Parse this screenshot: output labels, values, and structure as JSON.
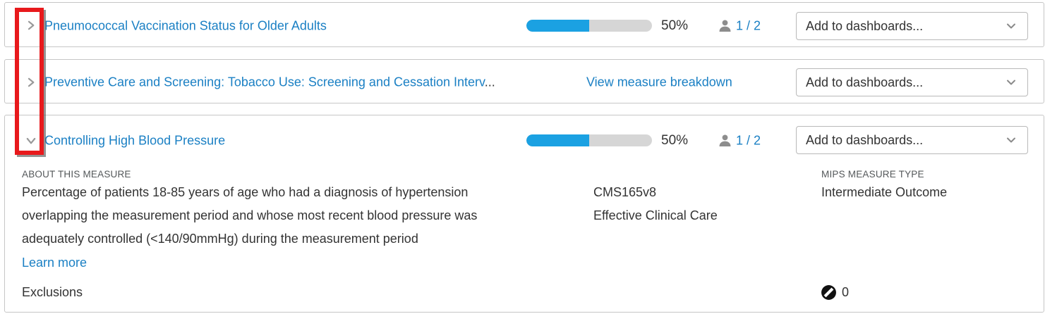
{
  "colors": {
    "link_blue": "#1b80c4",
    "progress_blue": "#1ba1e2",
    "progress_track": "#d6d6d6",
    "text_dark": "#333333",
    "label_gray": "#54585a",
    "icon_gray": "#8d8d8d",
    "row_border": "#c6c6c6",
    "annotation_red": "#e8191c"
  },
  "icons": {
    "row_collapsed": "chevron-right-icon",
    "row_expanded": "chevron-down-icon",
    "patients": "person-icon",
    "dropdown": "chevron-down-icon",
    "exclusions": "half-circle-icon"
  },
  "rows": [
    {
      "title": "Pneumococcal Vaccination Status for Older Adults",
      "progress_percent": 50,
      "progress_label": "50%",
      "patients": "1 / 2",
      "dropdown_label": "Add to dashboards...",
      "expanded": false
    },
    {
      "title": "Preventive Care and Screening: Tobacco Use: Screening and Cessation Interv",
      "ellipsis": "...",
      "breakdown_link": "View measure breakdown",
      "dropdown_label": "Add to dashboards...",
      "expanded": false
    },
    {
      "title": "Controlling High Blood Pressure",
      "progress_percent": 50,
      "progress_label": "50%",
      "patients": "1 / 2",
      "dropdown_label": "Add to dashboards...",
      "expanded": true,
      "details": {
        "about_label": "ABOUT THIS MEASURE",
        "description_lines": [
          "Percentage of patients 18-85 years of age who had a diagnosis of hypertension",
          "overlapping the measurement period and whose most recent blood pressure was",
          "adequately controlled (<140/90mmHg) during the measurement period"
        ],
        "learn_more": "Learn more",
        "cms_id": "CMS165v8",
        "care_domain": "Effective Clinical Care",
        "mips_label": "MIPS MEASURE TYPE",
        "mips_type": "Intermediate Outcome",
        "exclusions_label": "Exclusions",
        "exclusions_count": "0"
      }
    }
  ]
}
